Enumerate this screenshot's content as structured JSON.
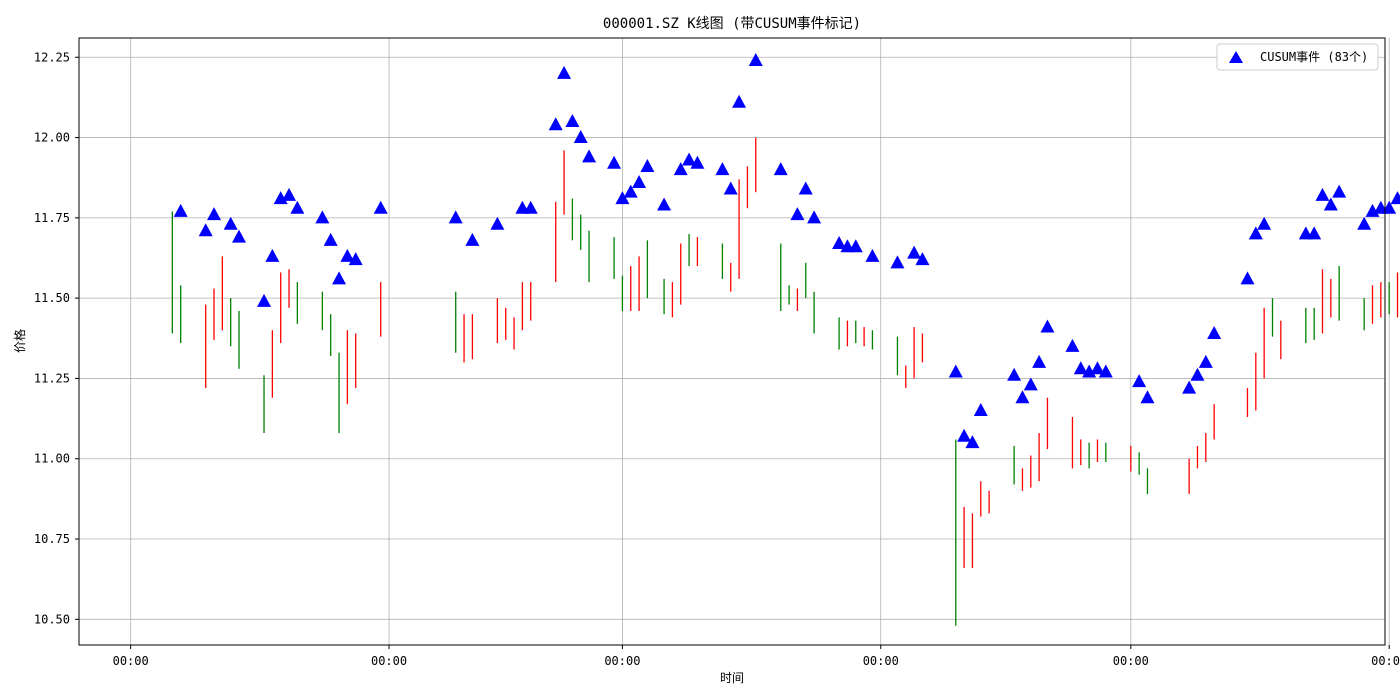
{
  "chart_data": {
    "type": "candlestick-scatter",
    "title": "000001.SZ K线图 (带CUSUM事件标记)",
    "xlabel": "时间",
    "ylabel": "价格",
    "ylim": [
      10.42,
      12.31
    ],
    "yticks": [
      10.5,
      10.75,
      11.0,
      11.25,
      11.5,
      11.75,
      12.0,
      12.25
    ],
    "ytick_labels": [
      "10.50",
      "10.75",
      "11.00",
      "11.25",
      "11.50",
      "11.75",
      "12.00",
      "12.25"
    ],
    "xlim": [
      -10.2,
      146.5
    ],
    "xtick_positions": [
      -4,
      27,
      55,
      86,
      116,
      147
    ],
    "xtick_labels": [
      "00:00",
      "00:00",
      "00:00",
      "00:00",
      "00:00",
      "00:00"
    ],
    "grid": true,
    "legend": {
      "position": "top-right",
      "label": "CUSUM事件 (83个)",
      "color": "#0000ff"
    },
    "colors": {
      "up": "#ff0000",
      "down": "#008000",
      "marker": "#0000ff"
    },
    "bars": [
      {
        "x": 1,
        "low": 11.39,
        "high": 11.77,
        "color": "down"
      },
      {
        "x": 2,
        "low": 11.36,
        "high": 11.54,
        "color": "down"
      },
      {
        "x": 5,
        "low": 11.22,
        "high": 11.48,
        "color": "up"
      },
      {
        "x": 6,
        "low": 11.37,
        "high": 11.53,
        "color": "up"
      },
      {
        "x": 7,
        "low": 11.4,
        "high": 11.63,
        "color": "up"
      },
      {
        "x": 8,
        "low": 11.35,
        "high": 11.5,
        "color": "down"
      },
      {
        "x": 9,
        "low": 11.28,
        "high": 11.46,
        "color": "down"
      },
      {
        "x": 12,
        "low": 11.08,
        "high": 11.26,
        "color": "down"
      },
      {
        "x": 13,
        "low": 11.19,
        "high": 11.4,
        "color": "up"
      },
      {
        "x": 14,
        "low": 11.36,
        "high": 11.58,
        "color": "up"
      },
      {
        "x": 15,
        "low": 11.47,
        "high": 11.59,
        "color": "up"
      },
      {
        "x": 16,
        "low": 11.42,
        "high": 11.55,
        "color": "down"
      },
      {
        "x": 19,
        "low": 11.4,
        "high": 11.52,
        "color": "down"
      },
      {
        "x": 20,
        "low": 11.32,
        "high": 11.45,
        "color": "down"
      },
      {
        "x": 21,
        "low": 11.08,
        "high": 11.33,
        "color": "down"
      },
      {
        "x": 22,
        "low": 11.17,
        "high": 11.4,
        "color": "up"
      },
      {
        "x": 23,
        "low": 11.22,
        "high": 11.39,
        "color": "up"
      },
      {
        "x": 26,
        "low": 11.38,
        "high": 11.55,
        "color": "up"
      },
      {
        "x": 35,
        "low": 11.33,
        "high": 11.52,
        "color": "down"
      },
      {
        "x": 36,
        "low": 11.3,
        "high": 11.45,
        "color": "up"
      },
      {
        "x": 37,
        "low": 11.31,
        "high": 11.45,
        "color": "up"
      },
      {
        "x": 40,
        "low": 11.36,
        "high": 11.5,
        "color": "up"
      },
      {
        "x": 41,
        "low": 11.37,
        "high": 11.47,
        "color": "up"
      },
      {
        "x": 42,
        "low": 11.34,
        "high": 11.44,
        "color": "up"
      },
      {
        "x": 43,
        "low": 11.4,
        "high": 11.55,
        "color": "up"
      },
      {
        "x": 44,
        "low": 11.43,
        "high": 11.55,
        "color": "up"
      },
      {
        "x": 47,
        "low": 11.55,
        "high": 11.8,
        "color": "up"
      },
      {
        "x": 48,
        "low": 11.76,
        "high": 11.96,
        "color": "up"
      },
      {
        "x": 49,
        "low": 11.68,
        "high": 11.81,
        "color": "down"
      },
      {
        "x": 50,
        "low": 11.65,
        "high": 11.76,
        "color": "down"
      },
      {
        "x": 51,
        "low": 11.55,
        "high": 11.71,
        "color": "down"
      },
      {
        "x": 54,
        "low": 11.56,
        "high": 11.69,
        "color": "down"
      },
      {
        "x": 55,
        "low": 11.46,
        "high": 11.57,
        "color": "down"
      },
      {
        "x": 56,
        "low": 11.46,
        "high": 11.6,
        "color": "up"
      },
      {
        "x": 57,
        "low": 11.46,
        "high": 11.63,
        "color": "up"
      },
      {
        "x": 58,
        "low": 11.5,
        "high": 11.68,
        "color": "down"
      },
      {
        "x": 60,
        "low": 11.45,
        "high": 11.56,
        "color": "down"
      },
      {
        "x": 61,
        "low": 11.44,
        "high": 11.55,
        "color": "up"
      },
      {
        "x": 62,
        "low": 11.48,
        "high": 11.67,
        "color": "up"
      },
      {
        "x": 63,
        "low": 11.6,
        "high": 11.7,
        "color": "down"
      },
      {
        "x": 64,
        "low": 11.6,
        "high": 11.69,
        "color": "up"
      },
      {
        "x": 67,
        "low": 11.56,
        "high": 11.67,
        "color": "down"
      },
      {
        "x": 68,
        "low": 11.52,
        "high": 11.61,
        "color": "up"
      },
      {
        "x": 69,
        "low": 11.56,
        "high": 11.87,
        "color": "up"
      },
      {
        "x": 70,
        "low": 11.78,
        "high": 11.91,
        "color": "up"
      },
      {
        "x": 71,
        "low": 11.83,
        "high": 12.0,
        "color": "up"
      },
      {
        "x": 74,
        "low": 11.46,
        "high": 11.67,
        "color": "down"
      },
      {
        "x": 75,
        "low": 11.48,
        "high": 11.54,
        "color": "down"
      },
      {
        "x": 76,
        "low": 11.46,
        "high": 11.53,
        "color": "up"
      },
      {
        "x": 77,
        "low": 11.5,
        "high": 11.61,
        "color": "down"
      },
      {
        "x": 78,
        "low": 11.39,
        "high": 11.52,
        "color": "down"
      },
      {
        "x": 81,
        "low": 11.34,
        "high": 11.44,
        "color": "down"
      },
      {
        "x": 82,
        "low": 11.35,
        "high": 11.43,
        "color": "up"
      },
      {
        "x": 83,
        "low": 11.36,
        "high": 11.43,
        "color": "down"
      },
      {
        "x": 84,
        "low": 11.35,
        "high": 11.41,
        "color": "up"
      },
      {
        "x": 85,
        "low": 11.34,
        "high": 11.4,
        "color": "down"
      },
      {
        "x": 88,
        "low": 11.26,
        "high": 11.38,
        "color": "down"
      },
      {
        "x": 89,
        "low": 11.22,
        "high": 11.29,
        "color": "up"
      },
      {
        "x": 90,
        "low": 11.25,
        "high": 11.41,
        "color": "up"
      },
      {
        "x": 91,
        "low": 11.3,
        "high": 11.39,
        "color": "up"
      },
      {
        "x": 95,
        "low": 10.48,
        "high": 11.06,
        "color": "down"
      },
      {
        "x": 96,
        "low": 10.66,
        "high": 10.85,
        "color": "up"
      },
      {
        "x": 97,
        "low": 10.66,
        "high": 10.83,
        "color": "up"
      },
      {
        "x": 98,
        "low": 10.82,
        "high": 10.93,
        "color": "up"
      },
      {
        "x": 99,
        "low": 10.83,
        "high": 10.9,
        "color": "up"
      },
      {
        "x": 102,
        "low": 10.92,
        "high": 11.04,
        "color": "down"
      },
      {
        "x": 103,
        "low": 10.9,
        "high": 10.97,
        "color": "up"
      },
      {
        "x": 104,
        "low": 10.91,
        "high": 11.01,
        "color": "up"
      },
      {
        "x": 105,
        "low": 10.93,
        "high": 11.08,
        "color": "up"
      },
      {
        "x": 106,
        "low": 11.03,
        "high": 11.19,
        "color": "up"
      },
      {
        "x": 109,
        "low": 10.97,
        "high": 11.13,
        "color": "up"
      },
      {
        "x": 110,
        "low": 10.98,
        "high": 11.06,
        "color": "up"
      },
      {
        "x": 111,
        "low": 10.97,
        "high": 11.05,
        "color": "down"
      },
      {
        "x": 112,
        "low": 10.99,
        "high": 11.06,
        "color": "up"
      },
      {
        "x": 113,
        "low": 10.99,
        "high": 11.05,
        "color": "down"
      },
      {
        "x": 116,
        "low": 10.96,
        "high": 11.04,
        "color": "up"
      },
      {
        "x": 117,
        "low": 10.95,
        "high": 11.02,
        "color": "down"
      },
      {
        "x": 118,
        "low": 10.89,
        "high": 10.97,
        "color": "down"
      },
      {
        "x": 123,
        "low": 10.89,
        "high": 11.0,
        "color": "up"
      },
      {
        "x": 124,
        "low": 10.97,
        "high": 11.04,
        "color": "up"
      },
      {
        "x": 125,
        "low": 10.99,
        "high": 11.08,
        "color": "up"
      },
      {
        "x": 126,
        "low": 11.06,
        "high": 11.17,
        "color": "up"
      },
      {
        "x": 130,
        "low": 11.13,
        "high": 11.22,
        "color": "up"
      },
      {
        "x": 131,
        "low": 11.15,
        "high": 11.33,
        "color": "up"
      },
      {
        "x": 132,
        "low": 11.25,
        "high": 11.47,
        "color": "up"
      },
      {
        "x": 133,
        "low": 11.38,
        "high": 11.5,
        "color": "down"
      },
      {
        "x": 134,
        "low": 11.31,
        "high": 11.43,
        "color": "up"
      },
      {
        "x": 137,
        "low": 11.36,
        "high": 11.47,
        "color": "down"
      },
      {
        "x": 138,
        "low": 11.37,
        "high": 11.47,
        "color": "down"
      },
      {
        "x": 139,
        "low": 11.39,
        "high": 11.59,
        "color": "up"
      },
      {
        "x": 140,
        "low": 11.44,
        "high": 11.56,
        "color": "up"
      },
      {
        "x": 141,
        "low": 11.43,
        "high": 11.6,
        "color": "down"
      },
      {
        "x": 144,
        "low": 11.4,
        "high": 11.5,
        "color": "down"
      },
      {
        "x": 145,
        "low": 11.42,
        "high": 11.54,
        "color": "up"
      },
      {
        "x": 146,
        "low": 11.44,
        "high": 11.55,
        "color": "up"
      },
      {
        "x": 147,
        "low": 11.45,
        "high": 11.55,
        "color": "down"
      },
      {
        "x": 148,
        "low": 11.44,
        "high": 11.58,
        "color": "up"
      }
    ],
    "events": [
      {
        "x": 2,
        "y": 11.77
      },
      {
        "x": 5,
        "y": 11.71
      },
      {
        "x": 6,
        "y": 11.76
      },
      {
        "x": 8,
        "y": 11.73
      },
      {
        "x": 9,
        "y": 11.69
      },
      {
        "x": 12,
        "y": 11.49
      },
      {
        "x": 13,
        "y": 11.63
      },
      {
        "x": 14,
        "y": 11.81
      },
      {
        "x": 15,
        "y": 11.82
      },
      {
        "x": 16,
        "y": 11.78
      },
      {
        "x": 19,
        "y": 11.75
      },
      {
        "x": 20,
        "y": 11.68
      },
      {
        "x": 21,
        "y": 11.56
      },
      {
        "x": 22,
        "y": 11.63
      },
      {
        "x": 23,
        "y": 11.62
      },
      {
        "x": 26,
        "y": 11.78
      },
      {
        "x": 35,
        "y": 11.75
      },
      {
        "x": 37,
        "y": 11.68
      },
      {
        "x": 40,
        "y": 11.73
      },
      {
        "x": 43,
        "y": 11.78
      },
      {
        "x": 44,
        "y": 11.78
      },
      {
        "x": 47,
        "y": 12.04
      },
      {
        "x": 48,
        "y": 12.2
      },
      {
        "x": 49,
        "y": 12.05
      },
      {
        "x": 50,
        "y": 12.0
      },
      {
        "x": 51,
        "y": 11.94
      },
      {
        "x": 54,
        "y": 11.92
      },
      {
        "x": 55,
        "y": 11.81
      },
      {
        "x": 56,
        "y": 11.83
      },
      {
        "x": 57,
        "y": 11.86
      },
      {
        "x": 58,
        "y": 11.91
      },
      {
        "x": 60,
        "y": 11.79
      },
      {
        "x": 62,
        "y": 11.9
      },
      {
        "x": 63,
        "y": 11.93
      },
      {
        "x": 64,
        "y": 11.92
      },
      {
        "x": 67,
        "y": 11.9
      },
      {
        "x": 68,
        "y": 11.84
      },
      {
        "x": 69,
        "y": 12.11
      },
      {
        "x": 71,
        "y": 12.24
      },
      {
        "x": 74,
        "y": 11.9
      },
      {
        "x": 76,
        "y": 11.76
      },
      {
        "x": 77,
        "y": 11.84
      },
      {
        "x": 78,
        "y": 11.75
      },
      {
        "x": 81,
        "y": 11.67
      },
      {
        "x": 82,
        "y": 11.66
      },
      {
        "x": 83,
        "y": 11.66
      },
      {
        "x": 85,
        "y": 11.63
      },
      {
        "x": 88,
        "y": 11.61
      },
      {
        "x": 90,
        "y": 11.64
      },
      {
        "x": 91,
        "y": 11.62
      },
      {
        "x": 95,
        "y": 11.27
      },
      {
        "x": 96,
        "y": 11.07
      },
      {
        "x": 97,
        "y": 11.05
      },
      {
        "x": 98,
        "y": 11.15
      },
      {
        "x": 102,
        "y": 11.26
      },
      {
        "x": 103,
        "y": 11.19
      },
      {
        "x": 104,
        "y": 11.23
      },
      {
        "x": 105,
        "y": 11.3
      },
      {
        "x": 106,
        "y": 11.41
      },
      {
        "x": 109,
        "y": 11.35
      },
      {
        "x": 110,
        "y": 11.28
      },
      {
        "x": 111,
        "y": 11.27
      },
      {
        "x": 112,
        "y": 11.28
      },
      {
        "x": 113,
        "y": 11.27
      },
      {
        "x": 117,
        "y": 11.24
      },
      {
        "x": 118,
        "y": 11.19
      },
      {
        "x": 123,
        "y": 11.22
      },
      {
        "x": 124,
        "y": 11.26
      },
      {
        "x": 125,
        "y": 11.3
      },
      {
        "x": 126,
        "y": 11.39
      },
      {
        "x": 130,
        "y": 11.56
      },
      {
        "x": 131,
        "y": 11.7
      },
      {
        "x": 132,
        "y": 11.73
      },
      {
        "x": 137,
        "y": 11.7
      },
      {
        "x": 138,
        "y": 11.7
      },
      {
        "x": 139,
        "y": 11.82
      },
      {
        "x": 140,
        "y": 11.79
      },
      {
        "x": 141,
        "y": 11.83
      },
      {
        "x": 144,
        "y": 11.73
      },
      {
        "x": 145,
        "y": 11.77
      },
      {
        "x": 146,
        "y": 11.78
      },
      {
        "x": 147,
        "y": 11.78
      },
      {
        "x": 148,
        "y": 11.81
      }
    ]
  }
}
